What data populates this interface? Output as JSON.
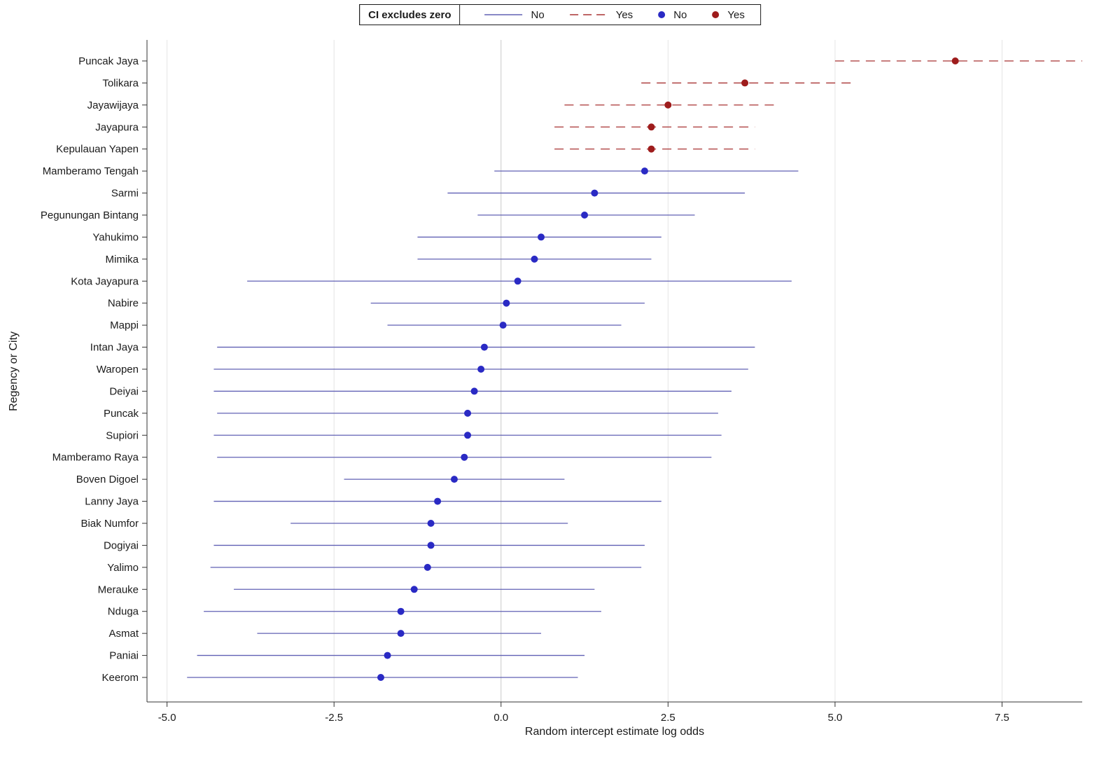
{
  "chart_data": {
    "type": "scatter",
    "subtype": "forest-plot",
    "title": "",
    "xlabel": "Random intercept estimate log odds",
    "ylabel": "Regency or City",
    "xlim": [
      -5.3,
      8.7
    ],
    "x_ticks": [
      -5.0,
      -2.5,
      0.0,
      2.5,
      5.0,
      7.5
    ],
    "x_tick_labels": [
      "-5.0",
      "-2.5",
      "0.0",
      "2.5",
      "5.0",
      "7.5"
    ],
    "grid": true,
    "legend_position": "top-center",
    "legend": {
      "title": "CI excludes zero",
      "line_no_label": "No",
      "line_yes_label": "Yes",
      "dot_no_label": "No",
      "dot_yes_label": "Yes"
    },
    "colors": {
      "ci_no_line": "#6060b4",
      "ci_yes_line": "#a83232",
      "point_no": "#2a2ac4",
      "point_yes": "#9e1c1c",
      "gridline": "#e4e4e4",
      "zero_gridline": "#c9c9c9",
      "axis_line": "#333333",
      "text": "#1a1a1a"
    },
    "rows": [
      {
        "name": "Puncak Jaya",
        "estimate": 6.8,
        "ci_low": 5.0,
        "ci_high": 8.7,
        "ci_excludes_zero": true
      },
      {
        "name": "Tolikara",
        "estimate": 3.65,
        "ci_low": 2.1,
        "ci_high": 5.25,
        "ci_excludes_zero": true
      },
      {
        "name": "Jayawijaya",
        "estimate": 2.5,
        "ci_low": 0.95,
        "ci_high": 4.1,
        "ci_excludes_zero": true
      },
      {
        "name": "Jayapura",
        "estimate": 2.25,
        "ci_low": 0.8,
        "ci_high": 3.8,
        "ci_excludes_zero": true
      },
      {
        "name": "Kepulauan Yapen",
        "estimate": 2.25,
        "ci_low": 0.8,
        "ci_high": 3.8,
        "ci_excludes_zero": true
      },
      {
        "name": "Mamberamo Tengah",
        "estimate": 2.15,
        "ci_low": -0.1,
        "ci_high": 4.45,
        "ci_excludes_zero": false
      },
      {
        "name": "Sarmi",
        "estimate": 1.4,
        "ci_low": -0.8,
        "ci_high": 3.65,
        "ci_excludes_zero": false
      },
      {
        "name": "Pegunungan Bintang",
        "estimate": 1.25,
        "ci_low": -0.35,
        "ci_high": 2.9,
        "ci_excludes_zero": false
      },
      {
        "name": "Yahukimo",
        "estimate": 0.6,
        "ci_low": -1.25,
        "ci_high": 2.4,
        "ci_excludes_zero": false
      },
      {
        "name": "Mimika",
        "estimate": 0.5,
        "ci_low": -1.25,
        "ci_high": 2.25,
        "ci_excludes_zero": false
      },
      {
        "name": "Kota Jayapura",
        "estimate": 0.25,
        "ci_low": -3.8,
        "ci_high": 4.35,
        "ci_excludes_zero": false
      },
      {
        "name": "Nabire",
        "estimate": 0.08,
        "ci_low": -1.95,
        "ci_high": 2.15,
        "ci_excludes_zero": false
      },
      {
        "name": "Mappi",
        "estimate": 0.03,
        "ci_low": -1.7,
        "ci_high": 1.8,
        "ci_excludes_zero": false
      },
      {
        "name": "Intan Jaya",
        "estimate": -0.25,
        "ci_low": -4.25,
        "ci_high": 3.8,
        "ci_excludes_zero": false
      },
      {
        "name": "Waropen",
        "estimate": -0.3,
        "ci_low": -4.3,
        "ci_high": 3.7,
        "ci_excludes_zero": false
      },
      {
        "name": "Deiyai",
        "estimate": -0.4,
        "ci_low": -4.3,
        "ci_high": 3.45,
        "ci_excludes_zero": false
      },
      {
        "name": "Puncak",
        "estimate": -0.5,
        "ci_low": -4.25,
        "ci_high": 3.25,
        "ci_excludes_zero": false
      },
      {
        "name": "Supiori",
        "estimate": -0.5,
        "ci_low": -4.3,
        "ci_high": 3.3,
        "ci_excludes_zero": false
      },
      {
        "name": "Mamberamo Raya",
        "estimate": -0.55,
        "ci_low": -4.25,
        "ci_high": 3.15,
        "ci_excludes_zero": false
      },
      {
        "name": "Boven Digoel",
        "estimate": -0.7,
        "ci_low": -2.35,
        "ci_high": 0.95,
        "ci_excludes_zero": false
      },
      {
        "name": "Lanny Jaya",
        "estimate": -0.95,
        "ci_low": -4.3,
        "ci_high": 2.4,
        "ci_excludes_zero": false
      },
      {
        "name": "Biak Numfor",
        "estimate": -1.05,
        "ci_low": -3.15,
        "ci_high": 1.0,
        "ci_excludes_zero": false
      },
      {
        "name": "Dogiyai",
        "estimate": -1.05,
        "ci_low": -4.3,
        "ci_high": 2.15,
        "ci_excludes_zero": false
      },
      {
        "name": "Yalimo",
        "estimate": -1.1,
        "ci_low": -4.35,
        "ci_high": 2.1,
        "ci_excludes_zero": false
      },
      {
        "name": "Merauke",
        "estimate": -1.3,
        "ci_low": -4.0,
        "ci_high": 1.4,
        "ci_excludes_zero": false
      },
      {
        "name": "Nduga",
        "estimate": -1.5,
        "ci_low": -4.45,
        "ci_high": 1.5,
        "ci_excludes_zero": false
      },
      {
        "name": "Asmat",
        "estimate": -1.5,
        "ci_low": -3.65,
        "ci_high": 0.6,
        "ci_excludes_zero": false
      },
      {
        "name": "Paniai",
        "estimate": -1.7,
        "ci_low": -4.55,
        "ci_high": 1.25,
        "ci_excludes_zero": false
      },
      {
        "name": "Keerom",
        "estimate": -1.8,
        "ci_low": -4.7,
        "ci_high": 1.15,
        "ci_excludes_zero": false
      }
    ]
  }
}
